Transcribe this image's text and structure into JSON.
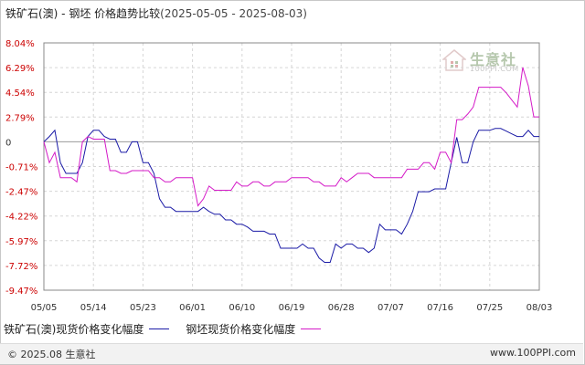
{
  "header": {
    "title": "铁矿石(澳) - 钢坯 价格趋势比较",
    "range": "(2025-05-05 - 2025-08-03)"
  },
  "watermark": {
    "brand": "生意社",
    "url": "100PPI.COM"
  },
  "legend": {
    "items": [
      {
        "label": "铁矿石(澳)现货价格变化幅度",
        "color": "#1a1aa6"
      },
      {
        "label": "钢坯现货价格变化幅度",
        "color": "#d419c7"
      }
    ]
  },
  "footer": {
    "left": "© 2025.08 生意社",
    "right": "www.100PPI.com"
  },
  "chart_data": {
    "type": "line",
    "yticks": [
      "8.04%",
      "6.29%",
      "4.54%",
      "2.79%",
      "0",
      "-0.71%",
      "-2.47%",
      "-4.22%",
      "-5.97%",
      "-7.72%",
      "-9.47%"
    ],
    "ylim": [
      -9.47,
      8.04
    ],
    "xticks": [
      "05/05",
      "05/14",
      "05/23",
      "06/01",
      "06/10",
      "06/19",
      "06/28",
      "07/07",
      "07/16",
      "07/25",
      "08/03"
    ],
    "grid": true,
    "series": [
      {
        "name": "铁矿石(澳)现货价格变化幅度",
        "color": "#1a1aa6",
        "x": [
          0,
          1,
          2,
          3,
          4,
          5,
          6,
          7,
          8,
          9,
          10,
          11,
          12,
          13,
          14,
          15,
          16,
          17,
          18,
          19,
          20,
          21,
          22,
          23,
          24,
          25,
          26,
          27,
          28,
          29,
          30,
          31,
          32,
          33,
          34,
          35,
          36,
          37,
          38,
          39,
          40,
          41,
          42,
          43,
          44,
          45,
          46,
          47,
          48,
          49,
          50,
          51,
          52,
          53,
          54,
          55,
          56,
          57,
          58,
          59,
          60,
          61,
          62,
          63,
          64,
          65,
          66,
          67,
          68,
          69,
          70,
          71,
          72,
          73,
          74,
          75,
          76,
          77,
          78,
          79,
          80,
          81,
          82,
          83,
          84,
          85,
          86,
          87,
          88,
          89,
          90
        ],
        "values": [
          0.0,
          0.6,
          1.3,
          -0.6,
          -1.2,
          -1.2,
          -1.2,
          -0.6,
          0.6,
          1.3,
          1.3,
          0.6,
          0.3,
          0.3,
          -0.3,
          -0.3,
          0.0,
          0.0,
          -0.6,
          -0.6,
          -1.2,
          -3.0,
          -3.6,
          -3.6,
          -3.9,
          -3.9,
          -3.9,
          -3.9,
          -3.9,
          -3.6,
          -3.9,
          -4.1,
          -4.1,
          -4.5,
          -4.5,
          -4.8,
          -4.8,
          -5.0,
          -5.3,
          -5.3,
          -5.3,
          -5.5,
          -5.5,
          -6.5,
          -6.5,
          -6.5,
          -6.5,
          -6.2,
          -6.5,
          -6.5,
          -7.2,
          -7.5,
          -7.5,
          -6.2,
          -6.5,
          -6.2,
          -6.2,
          -6.5,
          -6.5,
          -6.8,
          -6.5,
          -4.8,
          -5.2,
          -5.2,
          -5.2,
          -5.5,
          -4.8,
          -3.9,
          -2.5,
          -2.5,
          -2.5,
          -2.3,
          -2.3,
          -2.3,
          -0.6,
          0.5,
          -0.6,
          -0.6,
          0.0,
          1.3,
          1.3,
          1.3,
          1.5,
          1.5,
          1.2,
          0.9,
          0.6,
          0.6,
          1.3,
          0.6,
          0.6
        ]
      },
      {
        "name": "钢坯现货价格变化幅度",
        "color": "#d419c7",
        "x": [
          0,
          1,
          2,
          3,
          4,
          5,
          6,
          7,
          8,
          9,
          10,
          11,
          12,
          13,
          14,
          15,
          16,
          17,
          18,
          19,
          20,
          21,
          22,
          23,
          24,
          25,
          26,
          27,
          28,
          29,
          30,
          31,
          32,
          33,
          34,
          35,
          36,
          37,
          38,
          39,
          40,
          41,
          42,
          43,
          44,
          45,
          46,
          47,
          48,
          49,
          50,
          51,
          52,
          53,
          54,
          55,
          56,
          57,
          58,
          59,
          60,
          61,
          62,
          63,
          64,
          65,
          66,
          67,
          68,
          69,
          70,
          71,
          72,
          73,
          74,
          75,
          76,
          77,
          78,
          79,
          80,
          81,
          82,
          83,
          84,
          85,
          86,
          87,
          88,
          89,
          90
        ],
        "values": [
          0.0,
          -0.6,
          -0.3,
          -1.5,
          -1.5,
          -1.5,
          -1.8,
          0.0,
          0.6,
          0.3,
          0.3,
          0.3,
          -1.0,
          -1.0,
          -1.2,
          -1.2,
          -1.0,
          -1.0,
          -1.0,
          -1.0,
          -1.5,
          -1.5,
          -1.8,
          -1.8,
          -1.5,
          -1.5,
          -1.5,
          -1.5,
          -3.5,
          -3.0,
          -2.1,
          -2.4,
          -2.4,
          -2.4,
          -2.4,
          -1.8,
          -2.1,
          -2.1,
          -1.8,
          -1.8,
          -2.1,
          -2.1,
          -1.8,
          -1.8,
          -1.8,
          -1.5,
          -1.5,
          -1.5,
          -1.5,
          -1.8,
          -1.8,
          -2.1,
          -2.1,
          -2.1,
          -1.5,
          -1.8,
          -1.5,
          -1.2,
          -1.2,
          -1.2,
          -1.5,
          -1.5,
          -1.5,
          -1.5,
          -1.5,
          -1.5,
          -0.9,
          -0.9,
          -0.9,
          -0.6,
          -0.6,
          -0.9,
          -0.3,
          -0.3,
          -0.6,
          2.5,
          2.5,
          3.0,
          3.5,
          4.9,
          4.9,
          4.9,
          4.9,
          4.9,
          4.5,
          4.0,
          3.5,
          6.3,
          5.0,
          2.8,
          2.8
        ]
      }
    ]
  }
}
